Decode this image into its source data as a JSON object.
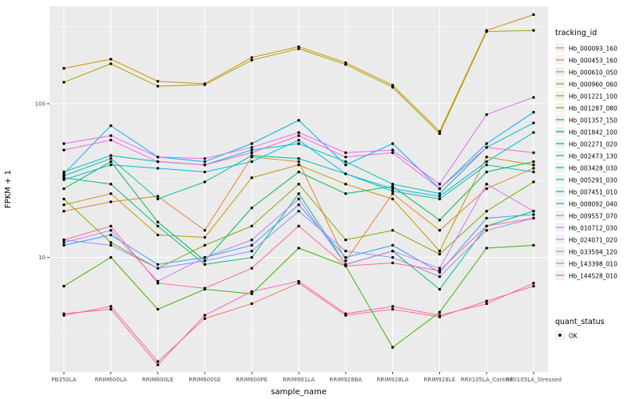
{
  "figure": {
    "background": "#FFFFFF",
    "panel_background": "#EBEBEB",
    "grid_color": "#FFFFFF",
    "tick_color": "#333333"
  },
  "chart_data": {
    "type": "line",
    "x_label": "sample_name",
    "y_label": "FPKM + 1",
    "y_scale": "log10",
    "y_ticks": [
      10,
      100
    ],
    "y_minor": [
      3.162,
      31.62,
      316.2
    ],
    "y_domain": [
      1.8,
      430
    ],
    "point_color": "#000000",
    "categories": [
      "PB350LA",
      "RRIM600LA",
      "RRIM600LE",
      "RRIM600SE",
      "RRIM600PE",
      "RRIM901LA",
      "RRIM928BA",
      "RRIM928LA",
      "RRIM928LE",
      "RRII105LA_Control",
      "RRII105LA_Stressed"
    ],
    "series": [
      {
        "name": "Hb_000093_160",
        "color": "#F8766D",
        "values": [
          4.2,
          4.8,
          2.1,
          4.0,
          5.0,
          6.8,
          4.2,
          4.6,
          4.1,
          5.2,
          6.5
        ]
      },
      {
        "name": "Hb_000453_160",
        "color": "#EA8331",
        "values": [
          20,
          23,
          25,
          15,
          45,
          42,
          9.5,
          26,
          15,
          28,
          38
        ]
      },
      {
        "name": "Hb_000610_050",
        "color": "#D89000",
        "values": [
          170,
          195,
          140,
          135,
          200,
          235,
          185,
          132,
          66,
          300,
          380
        ]
      },
      {
        "name": "Hb_000960_060",
        "color": "#C09B00",
        "values": [
          22,
          26,
          14,
          13.5,
          33,
          40,
          30,
          24,
          11,
          45,
          40
        ]
      },
      {
        "name": "Hb_001221_100",
        "color": "#A3A500",
        "values": [
          138,
          182,
          130,
          133,
          192,
          228,
          180,
          128,
          64,
          295,
          300
        ]
      },
      {
        "name": "Hb_001287_080",
        "color": "#7CAE00",
        "values": [
          24,
          12.5,
          8.5,
          12,
          16,
          30,
          13,
          15,
          10.5,
          20,
          31
        ]
      },
      {
        "name": "Hb_001357_150",
        "color": "#39B600",
        "values": [
          6.5,
          10,
          4.6,
          6.2,
          5.8,
          11.5,
          8.8,
          2.6,
          4.4,
          11.5,
          12
        ]
      },
      {
        "name": "Hb_001842_100",
        "color": "#00BB4E",
        "values": [
          28,
          42,
          17,
          9.5,
          21,
          36,
          26,
          29,
          17.5,
          36,
          42
        ]
      },
      {
        "name": "Hb_002271_020",
        "color": "#00BF7D",
        "values": [
          33,
          30,
          16,
          9,
          10,
          26,
          9,
          11,
          6.2,
          16,
          20
        ]
      },
      {
        "name": "Hb_002473_130",
        "color": "#00C1A3",
        "values": [
          34,
          44,
          24,
          31,
          46,
          44,
          35,
          27,
          24,
          40,
          36
        ]
      },
      {
        "name": "Hb_003428_030",
        "color": "#00BFC4",
        "values": [
          36,
          46,
          42,
          40,
          50,
          55,
          42,
          30,
          26,
          52,
          75
        ]
      },
      {
        "name": "Hb_005291_030",
        "color": "#00BAE0",
        "values": [
          32,
          40,
          38,
          36,
          42,
          58,
          35,
          28,
          25,
          42,
          65
        ]
      },
      {
        "name": "Hb_007451_010",
        "color": "#00B0F6",
        "values": [
          35,
          72,
          45,
          42,
          55,
          78,
          40,
          55,
          28,
          55,
          88
        ]
      },
      {
        "name": "Hb_008092_040",
        "color": "#35A2FF",
        "values": [
          12,
          14,
          9,
          10,
          12,
          22,
          10,
          12,
          8,
          18,
          19
        ]
      },
      {
        "name": "Hb_009557_070",
        "color": "#9590FF",
        "values": [
          13,
          12,
          8.5,
          9.5,
          11,
          20,
          11,
          10,
          7.5,
          15,
          18
        ]
      },
      {
        "name": "Hb_010712_030",
        "color": "#C77CFF",
        "values": [
          12.5,
          15,
          7,
          10,
          13,
          24,
          9,
          11,
          8.5,
          30,
          20
        ]
      },
      {
        "name": "Hb_024071_020",
        "color": "#E76BF3",
        "values": [
          55,
          62,
          45,
          44,
          52,
          65,
          48,
          50,
          30,
          85,
          110
        ]
      },
      {
        "name": "Hb_033594_120",
        "color": "#FA62DB",
        "values": [
          50,
          58,
          42,
          40,
          48,
          62,
          45,
          48,
          28,
          52,
          48
        ]
      },
      {
        "name": "Hb_143398_010",
        "color": "#FF62BC",
        "values": [
          4.3,
          4.6,
          2.0,
          4.2,
          6.0,
          7.0,
          4.3,
          4.8,
          4.2,
          5.0,
          6.8
        ]
      },
      {
        "name": "Hb_144528_010",
        "color": "#FF6A98",
        "values": [
          13,
          16,
          6.8,
          6.3,
          8.5,
          16,
          8.8,
          9.2,
          8.2,
          16,
          18
        ]
      }
    ],
    "legend": {
      "color_title": "tracking_id",
      "shape_title": "quant_status",
      "shape_items": [
        {
          "label": "OK"
        }
      ]
    }
  }
}
